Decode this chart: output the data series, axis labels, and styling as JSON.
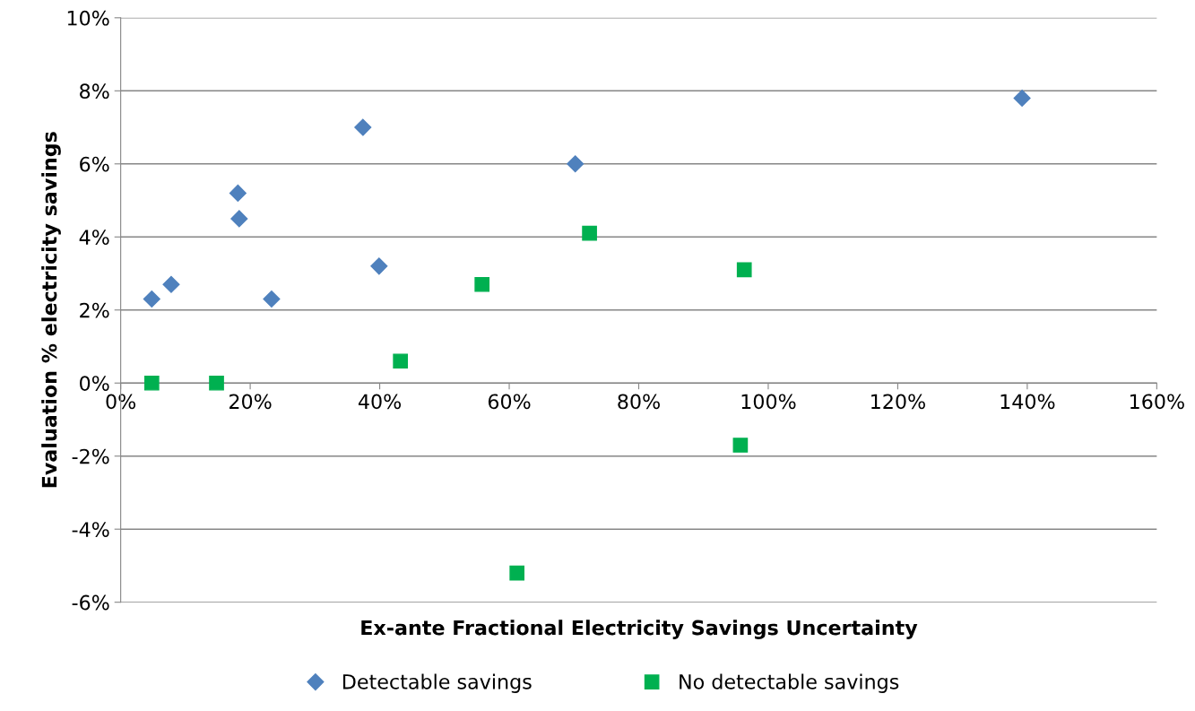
{
  "chart_data": {
    "type": "scatter",
    "xlabel": "Ex-ante Fractional Electricity Savings Uncertainty",
    "ylabel": "Evaluation % electricity savings",
    "series": [
      {
        "name": "Detectable savings",
        "color": "#4f81bd",
        "marker": "diamond",
        "x": [
          4.8,
          7.8,
          18.1,
          18.3,
          23.3,
          37.4,
          39.9,
          70.2,
          139.2
        ],
        "values": [
          2.3,
          2.7,
          5.2,
          4.5,
          2.3,
          7.0,
          3.2,
          6.0,
          7.8
        ]
      },
      {
        "name": "No detectable savings",
        "color": "#00b050",
        "marker": "square",
        "x": [
          4.8,
          14.8,
          43.2,
          55.8,
          72.4,
          96.3,
          95.7,
          61.2
        ],
        "values": [
          0,
          0,
          0.6,
          2.7,
          4.1,
          3.1,
          -1.7,
          -5.2
        ]
      }
    ],
    "xlim": [
      0,
      160
    ],
    "xticks": [
      {
        "value": 0,
        "label": "0%"
      },
      {
        "value": 20,
        "label": "20%"
      },
      {
        "value": 40,
        "label": "40%"
      },
      {
        "value": 60,
        "label": "60%"
      },
      {
        "value": 80,
        "label": "80%"
      },
      {
        "value": 100,
        "label": "100%"
      },
      {
        "value": 120,
        "label": "120%"
      },
      {
        "value": 140,
        "label": "140%"
      },
      {
        "value": 160,
        "label": "160%"
      }
    ],
    "ylim": [
      -6,
      10
    ],
    "yticks": [
      {
        "value": -6,
        "label": "-6%"
      },
      {
        "value": -4,
        "label": "-4%"
      },
      {
        "value": -2,
        "label": "-2%"
      },
      {
        "value": 0,
        "label": "0%"
      },
      {
        "value": 2,
        "label": "2%"
      },
      {
        "value": 4,
        "label": "4%"
      },
      {
        "value": 6,
        "label": "6%"
      },
      {
        "value": 8,
        "label": "8%"
      },
      {
        "value": 10,
        "label": "10%"
      }
    ],
    "grid": "y",
    "legend": "bottom"
  }
}
